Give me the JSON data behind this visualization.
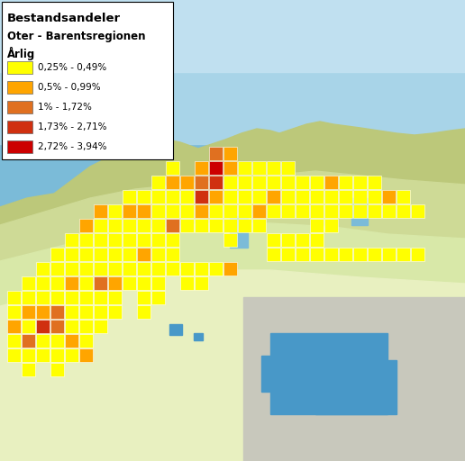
{
  "title_line1": "Bestandsandeler",
  "title_line2": "Oter - Barentsregionen",
  "title_line3": "Årlig",
  "legend_entries": [
    {
      "label": "0,25% - 0,49%",
      "color": "#FFFF00"
    },
    {
      "label": "0,5% - 0,99%",
      "color": "#FFA500"
    },
    {
      "label": "1% - 1,72%",
      "color": "#E07020"
    },
    {
      "label": "1,73% - 2,71%",
      "color": "#D03010"
    },
    {
      "label": "2,72% - 3,94%",
      "color": "#CC0000"
    }
  ],
  "figsize": [
    5.16,
    5.12
  ],
  "dpi": 100,
  "map_colors": {
    "ocean_dark": "#5BA4C8",
    "ocean_mid": "#7BBBD8",
    "ocean_light": "#A8D4E8",
    "ocean_pale": "#C0E0F0",
    "land_green_dark": "#A8B86A",
    "land_green_mid": "#BCC87A",
    "land_green_light": "#CEDA96",
    "land_green_pale": "#D8E8A8",
    "land_yellow_pale": "#E8F0C0",
    "land_gray": "#C8C8BC",
    "water_blue": "#4898C8",
    "border_line": "#888888"
  },
  "grid_squares": [
    {
      "col": 1,
      "row": 9,
      "color": "#FFFF00"
    },
    {
      "col": 1,
      "row": 8,
      "color": "#FFFF00"
    },
    {
      "col": 1,
      "row": 7,
      "color": "#FFA500"
    },
    {
      "col": 1,
      "row": 6,
      "color": "#FFFF00"
    },
    {
      "col": 1,
      "row": 5,
      "color": "#FFFF00"
    },
    {
      "col": 2,
      "row": 10,
      "color": "#FFFF00"
    },
    {
      "col": 2,
      "row": 9,
      "color": "#FFFF00"
    },
    {
      "col": 2,
      "row": 8,
      "color": "#FFA500"
    },
    {
      "col": 2,
      "row": 7,
      "color": "#FFFF00"
    },
    {
      "col": 2,
      "row": 6,
      "color": "#E07020"
    },
    {
      "col": 2,
      "row": 5,
      "color": "#FFFF00"
    },
    {
      "col": 2,
      "row": 4,
      "color": "#FFFF00"
    },
    {
      "col": 3,
      "row": 11,
      "color": "#FFFF00"
    },
    {
      "col": 3,
      "row": 10,
      "color": "#FFFF00"
    },
    {
      "col": 3,
      "row": 9,
      "color": "#FFFF00"
    },
    {
      "col": 3,
      "row": 8,
      "color": "#FFA500"
    },
    {
      "col": 3,
      "row": 7,
      "color": "#D03010"
    },
    {
      "col": 3,
      "row": 6,
      "color": "#FFFF00"
    },
    {
      "col": 3,
      "row": 5,
      "color": "#FFFF00"
    },
    {
      "col": 4,
      "row": 12,
      "color": "#FFFF00"
    },
    {
      "col": 4,
      "row": 11,
      "color": "#FFFF00"
    },
    {
      "col": 4,
      "row": 10,
      "color": "#FFFF00"
    },
    {
      "col": 4,
      "row": 9,
      "color": "#FFFF00"
    },
    {
      "col": 4,
      "row": 8,
      "color": "#E07020"
    },
    {
      "col": 4,
      "row": 7,
      "color": "#E07020"
    },
    {
      "col": 4,
      "row": 6,
      "color": "#FFFF00"
    },
    {
      "col": 4,
      "row": 5,
      "color": "#FFFF00"
    },
    {
      "col": 4,
      "row": 4,
      "color": "#FFFF00"
    },
    {
      "col": 5,
      "row": 13,
      "color": "#FFFF00"
    },
    {
      "col": 5,
      "row": 12,
      "color": "#FFFF00"
    },
    {
      "col": 5,
      "row": 11,
      "color": "#FFFF00"
    },
    {
      "col": 5,
      "row": 10,
      "color": "#FFA500"
    },
    {
      "col": 5,
      "row": 9,
      "color": "#FFFF00"
    },
    {
      "col": 5,
      "row": 8,
      "color": "#FFFF00"
    },
    {
      "col": 5,
      "row": 7,
      "color": "#FFFF00"
    },
    {
      "col": 5,
      "row": 6,
      "color": "#FFA500"
    },
    {
      "col": 5,
      "row": 5,
      "color": "#FFFF00"
    },
    {
      "col": 6,
      "row": 14,
      "color": "#FFA500"
    },
    {
      "col": 6,
      "row": 13,
      "color": "#FFFF00"
    },
    {
      "col": 6,
      "row": 12,
      "color": "#FFFF00"
    },
    {
      "col": 6,
      "row": 11,
      "color": "#FFFF00"
    },
    {
      "col": 6,
      "row": 10,
      "color": "#FFFF00"
    },
    {
      "col": 6,
      "row": 9,
      "color": "#FFFF00"
    },
    {
      "col": 6,
      "row": 8,
      "color": "#FFFF00"
    },
    {
      "col": 6,
      "row": 7,
      "color": "#FFFF00"
    },
    {
      "col": 6,
      "row": 6,
      "color": "#FFFF00"
    },
    {
      "col": 6,
      "row": 5,
      "color": "#FFA500"
    },
    {
      "col": 7,
      "row": 15,
      "color": "#FFA500"
    },
    {
      "col": 7,
      "row": 14,
      "color": "#FFFF00"
    },
    {
      "col": 7,
      "row": 13,
      "color": "#FFFF00"
    },
    {
      "col": 7,
      "row": 12,
      "color": "#FFFF00"
    },
    {
      "col": 7,
      "row": 11,
      "color": "#FFFF00"
    },
    {
      "col": 7,
      "row": 10,
      "color": "#E07020"
    },
    {
      "col": 7,
      "row": 9,
      "color": "#FFFF00"
    },
    {
      "col": 7,
      "row": 8,
      "color": "#FFFF00"
    },
    {
      "col": 7,
      "row": 7,
      "color": "#FFFF00"
    },
    {
      "col": 8,
      "row": 15,
      "color": "#FFFF00"
    },
    {
      "col": 8,
      "row": 14,
      "color": "#FFFF00"
    },
    {
      "col": 8,
      "row": 13,
      "color": "#FFFF00"
    },
    {
      "col": 8,
      "row": 12,
      "color": "#FFFF00"
    },
    {
      "col": 8,
      "row": 11,
      "color": "#FFFF00"
    },
    {
      "col": 8,
      "row": 10,
      "color": "#FFA500"
    },
    {
      "col": 8,
      "row": 9,
      "color": "#FFFF00"
    },
    {
      "col": 8,
      "row": 8,
      "color": "#FFFF00"
    },
    {
      "col": 9,
      "row": 16,
      "color": "#FFFF00"
    },
    {
      "col": 9,
      "row": 15,
      "color": "#FFA500"
    },
    {
      "col": 9,
      "row": 14,
      "color": "#FFFF00"
    },
    {
      "col": 9,
      "row": 13,
      "color": "#FFFF00"
    },
    {
      "col": 9,
      "row": 12,
      "color": "#FFFF00"
    },
    {
      "col": 9,
      "row": 11,
      "color": "#FFFF00"
    },
    {
      "col": 9,
      "row": 10,
      "color": "#FFFF00"
    },
    {
      "col": 10,
      "row": 16,
      "color": "#FFFF00"
    },
    {
      "col": 10,
      "row": 15,
      "color": "#FFA500"
    },
    {
      "col": 10,
      "row": 14,
      "color": "#FFFF00"
    },
    {
      "col": 10,
      "row": 13,
      "color": "#FFFF00"
    },
    {
      "col": 10,
      "row": 12,
      "color": "#FFA500"
    },
    {
      "col": 10,
      "row": 11,
      "color": "#FFFF00"
    },
    {
      "col": 10,
      "row": 10,
      "color": "#FFFF00"
    },
    {
      "col": 10,
      "row": 9,
      "color": "#FFFF00"
    },
    {
      "col": 10,
      "row": 8,
      "color": "#FFFF00"
    },
    {
      "col": 11,
      "row": 17,
      "color": "#FFFF00"
    },
    {
      "col": 11,
      "row": 16,
      "color": "#FFFF00"
    },
    {
      "col": 11,
      "row": 15,
      "color": "#FFFF00"
    },
    {
      "col": 11,
      "row": 14,
      "color": "#FFFF00"
    },
    {
      "col": 11,
      "row": 13,
      "color": "#FFFF00"
    },
    {
      "col": 11,
      "row": 12,
      "color": "#FFFF00"
    },
    {
      "col": 11,
      "row": 11,
      "color": "#FFFF00"
    },
    {
      "col": 11,
      "row": 10,
      "color": "#FFFF00"
    },
    {
      "col": 11,
      "row": 9,
      "color": "#FFFF00"
    },
    {
      "col": 12,
      "row": 18,
      "color": "#FFFF00"
    },
    {
      "col": 12,
      "row": 17,
      "color": "#FFA500"
    },
    {
      "col": 12,
      "row": 16,
      "color": "#FFFF00"
    },
    {
      "col": 12,
      "row": 15,
      "color": "#FFFF00"
    },
    {
      "col": 12,
      "row": 14,
      "color": "#E07020"
    },
    {
      "col": 12,
      "row": 13,
      "color": "#FFFF00"
    },
    {
      "col": 12,
      "row": 12,
      "color": "#FFFF00"
    },
    {
      "col": 12,
      "row": 11,
      "color": "#FFFF00"
    },
    {
      "col": 13,
      "row": 17,
      "color": "#FFA500"
    },
    {
      "col": 13,
      "row": 16,
      "color": "#FFFF00"
    },
    {
      "col": 13,
      "row": 15,
      "color": "#FFFF00"
    },
    {
      "col": 13,
      "row": 14,
      "color": "#FFFF00"
    },
    {
      "col": 13,
      "row": 11,
      "color": "#FFFF00"
    },
    {
      "col": 13,
      "row": 10,
      "color": "#FFFF00"
    },
    {
      "col": 14,
      "row": 18,
      "color": "#FFA500"
    },
    {
      "col": 14,
      "row": 17,
      "color": "#E07020"
    },
    {
      "col": 14,
      "row": 16,
      "color": "#D03010"
    },
    {
      "col": 14,
      "row": 15,
      "color": "#FFA500"
    },
    {
      "col": 14,
      "row": 14,
      "color": "#FFFF00"
    },
    {
      "col": 14,
      "row": 11,
      "color": "#FFFF00"
    },
    {
      "col": 14,
      "row": 10,
      "color": "#FFFF00"
    },
    {
      "col": 15,
      "row": 19,
      "color": "#E07020"
    },
    {
      "col": 15,
      "row": 18,
      "color": "#CC0000"
    },
    {
      "col": 15,
      "row": 17,
      "color": "#D03010"
    },
    {
      "col": 15,
      "row": 16,
      "color": "#FFA500"
    },
    {
      "col": 15,
      "row": 15,
      "color": "#FFFF00"
    },
    {
      "col": 15,
      "row": 14,
      "color": "#FFFF00"
    },
    {
      "col": 15,
      "row": 11,
      "color": "#FFFF00"
    },
    {
      "col": 16,
      "row": 19,
      "color": "#FFA500"
    },
    {
      "col": 16,
      "row": 18,
      "color": "#FFA500"
    },
    {
      "col": 16,
      "row": 17,
      "color": "#FFFF00"
    },
    {
      "col": 16,
      "row": 16,
      "color": "#FFFF00"
    },
    {
      "col": 16,
      "row": 15,
      "color": "#FFFF00"
    },
    {
      "col": 16,
      "row": 14,
      "color": "#FFFF00"
    },
    {
      "col": 16,
      "row": 13,
      "color": "#FFFF00"
    },
    {
      "col": 16,
      "row": 11,
      "color": "#FFA500"
    },
    {
      "col": 17,
      "row": 18,
      "color": "#FFFF00"
    },
    {
      "col": 17,
      "row": 17,
      "color": "#FFFF00"
    },
    {
      "col": 17,
      "row": 16,
      "color": "#FFFF00"
    },
    {
      "col": 17,
      "row": 15,
      "color": "#FFFF00"
    },
    {
      "col": 17,
      "row": 14,
      "color": "#FFFF00"
    },
    {
      "col": 18,
      "row": 18,
      "color": "#FFFF00"
    },
    {
      "col": 18,
      "row": 17,
      "color": "#FFFF00"
    },
    {
      "col": 18,
      "row": 16,
      "color": "#FFFF00"
    },
    {
      "col": 18,
      "row": 15,
      "color": "#FFA500"
    },
    {
      "col": 18,
      "row": 14,
      "color": "#FFFF00"
    },
    {
      "col": 19,
      "row": 18,
      "color": "#FFFF00"
    },
    {
      "col": 19,
      "row": 17,
      "color": "#FFFF00"
    },
    {
      "col": 19,
      "row": 16,
      "color": "#FFA500"
    },
    {
      "col": 19,
      "row": 15,
      "color": "#FFFF00"
    },
    {
      "col": 20,
      "row": 18,
      "color": "#FFFF00"
    },
    {
      "col": 20,
      "row": 17,
      "color": "#FFFF00"
    },
    {
      "col": 20,
      "row": 16,
      "color": "#FFFF00"
    },
    {
      "col": 20,
      "row": 15,
      "color": "#FFFF00"
    },
    {
      "col": 21,
      "row": 17,
      "color": "#FFFF00"
    },
    {
      "col": 21,
      "row": 16,
      "color": "#FFFF00"
    },
    {
      "col": 21,
      "row": 15,
      "color": "#FFFF00"
    },
    {
      "col": 22,
      "row": 17,
      "color": "#FFFF00"
    },
    {
      "col": 22,
      "row": 16,
      "color": "#FFFF00"
    },
    {
      "col": 22,
      "row": 15,
      "color": "#FFFF00"
    },
    {
      "col": 22,
      "row": 14,
      "color": "#FFFF00"
    },
    {
      "col": 23,
      "row": 17,
      "color": "#FFA500"
    },
    {
      "col": 23,
      "row": 16,
      "color": "#FFFF00"
    },
    {
      "col": 23,
      "row": 15,
      "color": "#FFFF00"
    },
    {
      "col": 23,
      "row": 14,
      "color": "#FFFF00"
    },
    {
      "col": 24,
      "row": 17,
      "color": "#FFFF00"
    },
    {
      "col": 24,
      "row": 16,
      "color": "#FFFF00"
    },
    {
      "col": 24,
      "row": 15,
      "color": "#FFFF00"
    },
    {
      "col": 25,
      "row": 17,
      "color": "#FFFF00"
    },
    {
      "col": 25,
      "row": 16,
      "color": "#FFFF00"
    },
    {
      "col": 25,
      "row": 15,
      "color": "#FFFF00"
    },
    {
      "col": 26,
      "row": 17,
      "color": "#FFFF00"
    },
    {
      "col": 26,
      "row": 16,
      "color": "#FFFF00"
    },
    {
      "col": 26,
      "row": 15,
      "color": "#FFFF00"
    },
    {
      "col": 27,
      "row": 16,
      "color": "#FFA500"
    },
    {
      "col": 27,
      "row": 15,
      "color": "#FFFF00"
    },
    {
      "col": 28,
      "row": 16,
      "color": "#FFFF00"
    },
    {
      "col": 28,
      "row": 15,
      "color": "#FFFF00"
    },
    {
      "col": 29,
      "row": 15,
      "color": "#FFFF00"
    },
    {
      "col": 19,
      "row": 13,
      "color": "#FFFF00"
    },
    {
      "col": 19,
      "row": 12,
      "color": "#FFFF00"
    },
    {
      "col": 20,
      "row": 13,
      "color": "#FFFF00"
    },
    {
      "col": 20,
      "row": 12,
      "color": "#FFFF00"
    },
    {
      "col": 21,
      "row": 13,
      "color": "#FFFF00"
    },
    {
      "col": 21,
      "row": 12,
      "color": "#FFFF00"
    },
    {
      "col": 22,
      "row": 13,
      "color": "#FFFF00"
    },
    {
      "col": 22,
      "row": 12,
      "color": "#FFFF00"
    },
    {
      "col": 23,
      "row": 12,
      "color": "#FFFF00"
    },
    {
      "col": 24,
      "row": 12,
      "color": "#FFFF00"
    },
    {
      "col": 25,
      "row": 12,
      "color": "#FFFF00"
    },
    {
      "col": 26,
      "row": 12,
      "color": "#FFFF00"
    },
    {
      "col": 27,
      "row": 12,
      "color": "#FFFF00"
    },
    {
      "col": 28,
      "row": 12,
      "color": "#FFFF00"
    },
    {
      "col": 29,
      "row": 12,
      "color": "#FFFF00"
    }
  ]
}
